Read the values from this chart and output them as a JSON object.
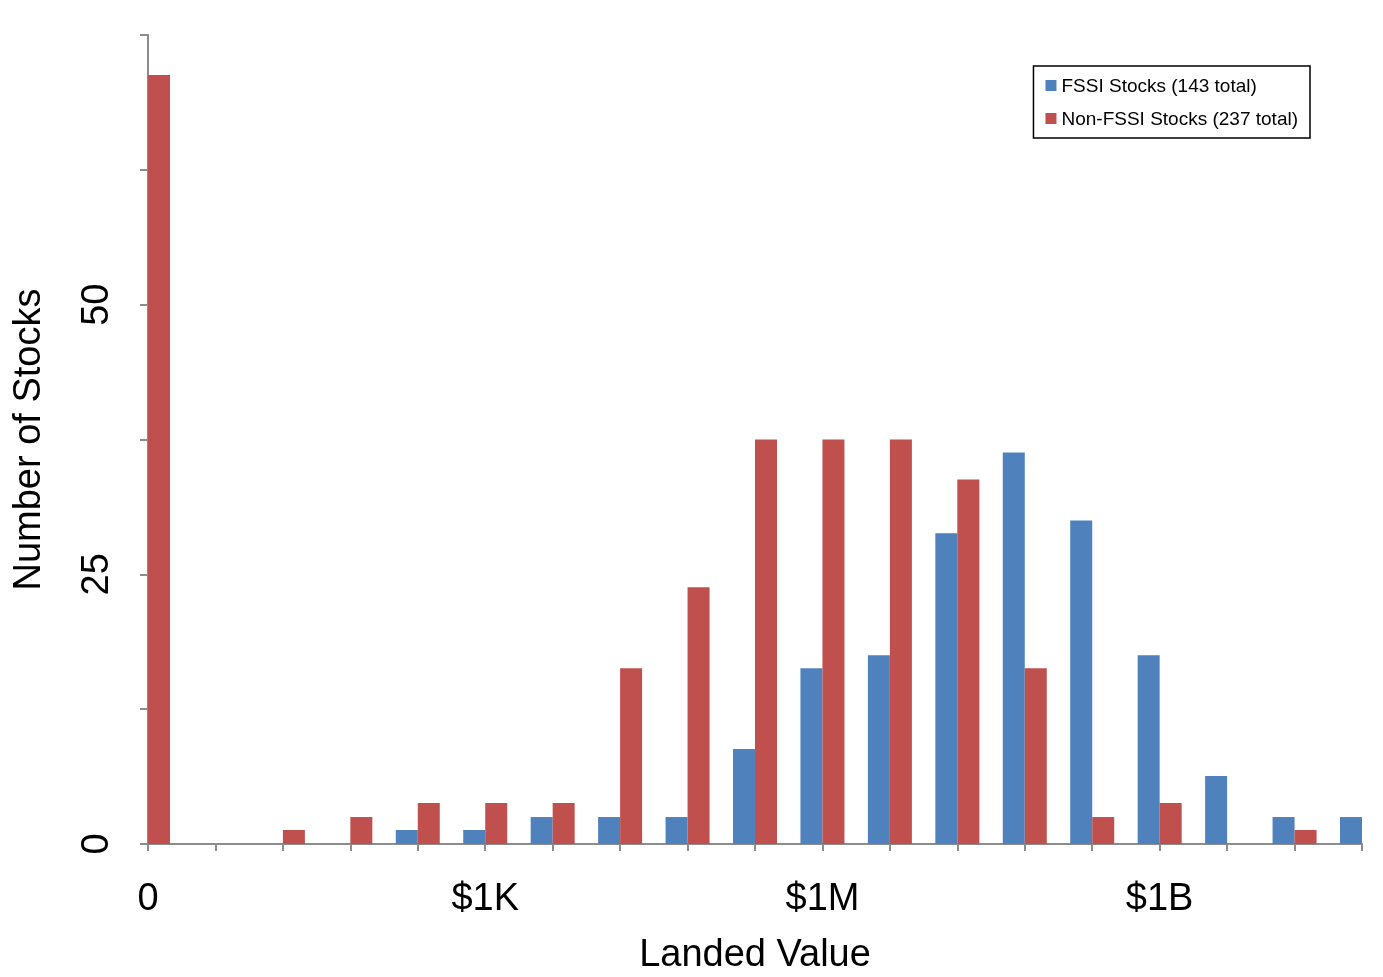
{
  "chart_data": {
    "type": "bar",
    "xlabel": "Landed Value",
    "ylabel": "Number of Stocks",
    "categories": [
      "0",
      null,
      null,
      null,
      null,
      "$1K",
      null,
      null,
      null,
      null,
      "$1M",
      null,
      null,
      null,
      null,
      "$1B",
      null,
      null,
      null
    ],
    "series": [
      {
        "name": "FSSI Stocks (143 total)",
        "color": "#4f81bd",
        "values": [
          null,
          null,
          null,
          null,
          1.3,
          1.3,
          2.5,
          2.5,
          2.5,
          8.8,
          16.3,
          17.5,
          28.8,
          36.3,
          30,
          17.5,
          6.3,
          2.5,
          2.5
        ]
      },
      {
        "name": "Non-FSSI Stocks (237 total)",
        "color": "#c0504d",
        "values": [
          71.3,
          null,
          1.3,
          2.5,
          3.8,
          3.8,
          3.8,
          16.3,
          23.8,
          37.5,
          37.5,
          37.5,
          33.8,
          16.3,
          2.5,
          3.8,
          null,
          1.3,
          null
        ]
      }
    ],
    "ylim": [
      0,
      75
    ],
    "yticks": [
      0,
      {
        "value": 12.5,
        "label": null
      },
      25,
      {
        "value": 37.5,
        "label": null
      },
      50,
      {
        "value": 62.5,
        "label": null
      },
      {
        "value": 75,
        "label": null
      }
    ],
    "grid": false,
    "legend": "top right"
  }
}
